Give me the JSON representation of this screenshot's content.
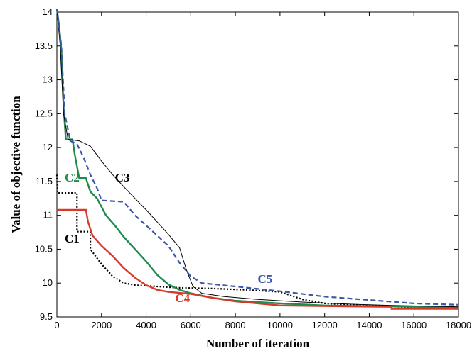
{
  "chart_data": {
    "type": "line",
    "title": "",
    "xlabel": "Number of iteration",
    "ylabel": "Value of objective function",
    "xlim": [
      0,
      18000
    ],
    "ylim": [
      9.5,
      14
    ],
    "xticks": [
      0,
      2000,
      4000,
      6000,
      8000,
      10000,
      12000,
      14000,
      16000,
      18000
    ],
    "yticks": [
      9.5,
      10,
      10.5,
      11,
      11.5,
      12,
      12.5,
      13,
      13.5,
      14
    ],
    "grid": false,
    "legend": "none",
    "series": [
      {
        "name": "C1",
        "color": "#000000",
        "style": "dotted",
        "points": [
          [
            0,
            11.6
          ],
          [
            30,
            11.33
          ],
          [
            900,
            11.33
          ],
          [
            900,
            10.76
          ],
          [
            1500,
            10.76
          ],
          [
            1500,
            10.5
          ],
          [
            2000,
            10.28
          ],
          [
            2500,
            10.1
          ],
          [
            3000,
            10.0
          ],
          [
            3500,
            9.97
          ],
          [
            4500,
            9.95
          ],
          [
            5500,
            9.93
          ],
          [
            7000,
            9.92
          ],
          [
            8500,
            9.9
          ],
          [
            10000,
            9.87
          ],
          [
            11000,
            9.76
          ],
          [
            12000,
            9.7
          ],
          [
            14000,
            9.67
          ],
          [
            16000,
            9.64
          ],
          [
            18000,
            9.62
          ]
        ]
      },
      {
        "name": "C2",
        "color": "#1f8a4c",
        "style": "solid",
        "points": [
          [
            0,
            14.1
          ],
          [
            100,
            13.8
          ],
          [
            200,
            13.45
          ],
          [
            300,
            12.6
          ],
          [
            400,
            12.12
          ],
          [
            700,
            12.12
          ],
          [
            800,
            11.9
          ],
          [
            1000,
            11.55
          ],
          [
            1300,
            11.55
          ],
          [
            1500,
            11.35
          ],
          [
            1800,
            11.25
          ],
          [
            2200,
            11.0
          ],
          [
            2600,
            10.85
          ],
          [
            3000,
            10.68
          ],
          [
            3500,
            10.5
          ],
          [
            4000,
            10.32
          ],
          [
            4500,
            10.12
          ],
          [
            5000,
            9.98
          ],
          [
            5500,
            9.9
          ],
          [
            6000,
            9.85
          ],
          [
            7000,
            9.78
          ],
          [
            8000,
            9.74
          ],
          [
            10000,
            9.7
          ],
          [
            12000,
            9.67
          ],
          [
            14000,
            9.66
          ],
          [
            16000,
            9.65
          ],
          [
            18000,
            9.64
          ]
        ]
      },
      {
        "name": "C3",
        "color": "#000000",
        "style": "thin",
        "points": [
          [
            0,
            14.1
          ],
          [
            150,
            13.5
          ],
          [
            300,
            12.5
          ],
          [
            500,
            12.12
          ],
          [
            1000,
            12.1
          ],
          [
            1500,
            12.02
          ],
          [
            2000,
            11.8
          ],
          [
            2500,
            11.6
          ],
          [
            3000,
            11.42
          ],
          [
            3500,
            11.25
          ],
          [
            4000,
            11.08
          ],
          [
            4500,
            10.9
          ],
          [
            5000,
            10.72
          ],
          [
            5500,
            10.52
          ],
          [
            5800,
            10.2
          ],
          [
            6100,
            9.95
          ],
          [
            6500,
            9.85
          ],
          [
            7500,
            9.8
          ],
          [
            9000,
            9.76
          ],
          [
            11000,
            9.72
          ],
          [
            13000,
            9.69
          ],
          [
            15000,
            9.67
          ],
          [
            18000,
            9.65
          ]
        ]
      },
      {
        "name": "C4",
        "color": "#d63a2a",
        "style": "solid",
        "points": [
          [
            0,
            11.08
          ],
          [
            1300,
            11.08
          ],
          [
            1400,
            10.9
          ],
          [
            1600,
            10.7
          ],
          [
            2000,
            10.55
          ],
          [
            2500,
            10.4
          ],
          [
            3000,
            10.22
          ],
          [
            3500,
            10.08
          ],
          [
            4000,
            9.97
          ],
          [
            4500,
            9.9
          ],
          [
            5000,
            9.87
          ],
          [
            6000,
            9.84
          ],
          [
            7000,
            9.78
          ],
          [
            8000,
            9.73
          ],
          [
            10000,
            9.67
          ],
          [
            12000,
            9.66
          ],
          [
            15000,
            9.65
          ],
          [
            15000,
            9.62
          ],
          [
            18000,
            9.62
          ]
        ]
      },
      {
        "name": "C5",
        "color": "#3a56a8",
        "style": "dashed",
        "points": [
          [
            0,
            14.1
          ],
          [
            200,
            13.5
          ],
          [
            350,
            12.5
          ],
          [
            600,
            12.1
          ],
          [
            900,
            12.05
          ],
          [
            1200,
            11.85
          ],
          [
            1500,
            11.6
          ],
          [
            1800,
            11.4
          ],
          [
            2000,
            11.22
          ],
          [
            3000,
            11.2
          ],
          [
            3500,
            11.0
          ],
          [
            4000,
            10.85
          ],
          [
            4500,
            10.7
          ],
          [
            5000,
            10.55
          ],
          [
            5500,
            10.3
          ],
          [
            6000,
            10.1
          ],
          [
            6500,
            10.0
          ],
          [
            8000,
            9.95
          ],
          [
            10000,
            9.88
          ],
          [
            12000,
            9.8
          ],
          [
            14000,
            9.75
          ],
          [
            16000,
            9.7
          ],
          [
            18000,
            9.68
          ]
        ]
      }
    ],
    "annotations": [
      {
        "text": "C1",
        "x": 350,
        "y": 10.6,
        "color": "#000000"
      },
      {
        "text": "C2",
        "x": 350,
        "y": 11.5,
        "color": "#1f8a4c"
      },
      {
        "text": "C3",
        "x": 2600,
        "y": 11.5,
        "color": "#000000"
      },
      {
        "text": "C4",
        "x": 5300,
        "y": 9.72,
        "color": "#d63a2a"
      },
      {
        "text": "C5",
        "x": 9000,
        "y": 10.0,
        "color": "#3a56a8"
      }
    ]
  }
}
